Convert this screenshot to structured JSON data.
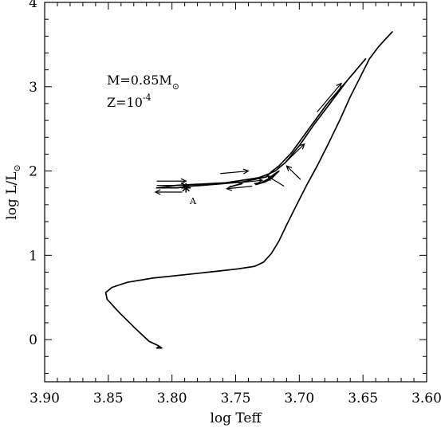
{
  "chart_data": {
    "type": "line",
    "xlabel": "log Teff",
    "ylabel_main": "log L/L",
    "ylabel_sub": "⊙",
    "xlim": [
      3.9,
      3.6
    ],
    "ylim": [
      -0.5,
      4.0
    ],
    "x_ticks": [
      3.9,
      3.85,
      3.8,
      3.75,
      3.7,
      3.65,
      3.6
    ],
    "x_tick_labels": [
      "3.90",
      "3.85",
      "3.80",
      "3.75",
      "3.70",
      "3.65",
      "3.60"
    ],
    "y_ticks": [
      0,
      1,
      2,
      3,
      4
    ],
    "y_tick_labels": [
      "0",
      "1",
      "2",
      "3",
      "4"
    ],
    "grid": false,
    "annotations": {
      "mass_prefix": "M=0.85M",
      "mass_sub": "⊙",
      "z_prefix": "Z=10",
      "z_sup": "-4",
      "marker_label": "A"
    },
    "marker_A": {
      "x": 3.789,
      "y": 1.8,
      "symbol": "asterisk"
    },
    "series": [
      {
        "points": [
          [
            3.81,
            -0.08
          ],
          [
            3.812,
            -0.1
          ],
          [
            3.808,
            -0.1
          ],
          [
            3.811,
            -0.07
          ],
          [
            3.818,
            -0.02
          ],
          [
            3.83,
            0.15
          ],
          [
            3.842,
            0.33
          ],
          [
            3.851,
            0.48
          ],
          [
            3.852,
            0.56
          ],
          [
            3.847,
            0.62
          ],
          [
            3.835,
            0.68
          ],
          [
            3.815,
            0.73
          ],
          [
            3.79,
            0.77
          ],
          [
            3.765,
            0.81
          ],
          [
            3.748,
            0.84
          ],
          [
            3.735,
            0.87
          ],
          [
            3.728,
            0.92
          ],
          [
            3.722,
            1.02
          ],
          [
            3.716,
            1.17
          ],
          [
            3.71,
            1.36
          ],
          [
            3.703,
            1.57
          ],
          [
            3.695,
            1.81
          ],
          [
            3.686,
            2.06
          ],
          [
            3.677,
            2.33
          ],
          [
            3.668,
            2.61
          ],
          [
            3.66,
            2.88
          ],
          [
            3.652,
            3.12
          ],
          [
            3.645,
            3.33
          ],
          [
            3.638,
            3.47
          ],
          [
            3.632,
            3.57
          ],
          [
            3.627,
            3.65
          ]
        ]
      },
      {
        "points": [
          [
            3.648,
            3.33
          ],
          [
            3.662,
            3.08
          ],
          [
            3.678,
            2.8
          ],
          [
            3.693,
            2.49
          ],
          [
            3.706,
            2.22
          ],
          [
            3.716,
            2.06
          ],
          [
            3.722,
            1.99
          ],
          [
            3.726,
            1.93
          ],
          [
            3.735,
            1.9
          ],
          [
            3.745,
            1.87
          ],
          [
            3.76,
            1.85
          ],
          [
            3.776,
            1.83
          ],
          [
            3.786,
            1.82
          ],
          [
            3.796,
            1.8
          ],
          [
            3.812,
            1.8
          ],
          [
            3.796,
            1.83
          ],
          [
            3.784,
            1.84
          ],
          [
            3.77,
            1.85
          ],
          [
            3.758,
            1.86
          ],
          [
            3.745,
            1.89
          ],
          [
            3.732,
            1.92
          ],
          [
            3.725,
            1.96
          ],
          [
            3.719,
            2.0
          ],
          [
            3.711,
            2.1
          ],
          [
            3.7,
            2.3
          ],
          [
            3.688,
            2.56
          ],
          [
            3.675,
            2.82
          ],
          [
            3.662,
            3.08
          ],
          [
            3.648,
            3.33
          ]
        ]
      },
      {
        "points": [
          [
            3.734,
            1.84
          ],
          [
            3.727,
            1.87
          ],
          [
            3.722,
            1.91
          ],
          [
            3.718,
            1.97
          ],
          [
            3.716,
            2.0
          ],
          [
            3.719,
            1.97
          ],
          [
            3.724,
            1.91
          ],
          [
            3.73,
            1.86
          ],
          [
            3.735,
            1.85
          ]
        ]
      },
      {
        "points": [
          [
            3.755,
            1.81
          ],
          [
            3.75,
            1.83
          ],
          [
            3.745,
            1.85
          ],
          [
            3.748,
            1.84
          ]
        ]
      }
    ],
    "arrows": [
      {
        "from": [
          3.812,
          1.88
        ],
        "to": [
          3.789,
          1.88
        ]
      },
      {
        "from": [
          3.812,
          1.83
        ],
        "to": [
          3.789,
          1.83
        ]
      },
      {
        "from": [
          3.792,
          1.75
        ],
        "to": [
          3.813,
          1.75
        ]
      },
      {
        "from": [
          3.762,
          1.97
        ],
        "to": [
          3.74,
          2.0
        ]
      },
      {
        "from": [
          3.737,
          1.82
        ],
        "to": [
          3.757,
          1.79
        ]
      },
      {
        "from": [
          3.748,
          1.86
        ],
        "to": [
          3.729,
          1.89
        ]
      },
      {
        "from": [
          3.712,
          1.82
        ],
        "to": [
          3.725,
          1.94
        ]
      },
      {
        "from": [
          3.711,
          2.1
        ],
        "to": [
          3.696,
          2.32
        ]
      },
      {
        "from": [
          3.699,
          1.9
        ],
        "to": [
          3.71,
          2.06
        ]
      },
      {
        "from": [
          3.686,
          2.7
        ],
        "to": [
          3.667,
          3.04
        ]
      }
    ]
  }
}
